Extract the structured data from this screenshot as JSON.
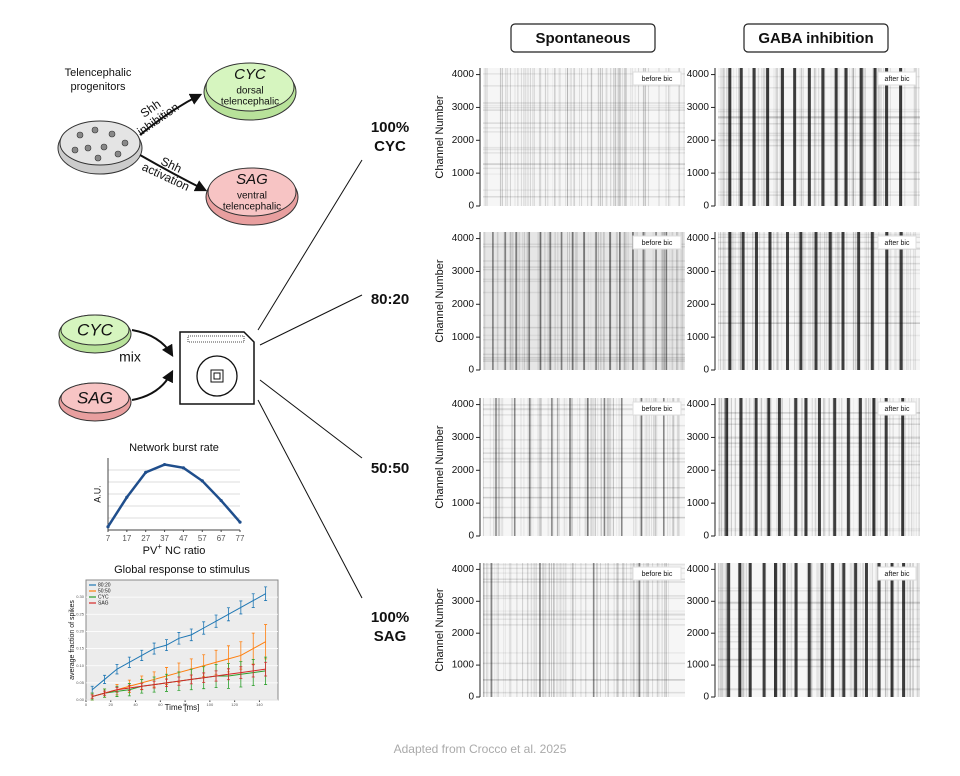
{
  "header": {
    "columns": [
      "Spontaneous",
      "GABA inhibition"
    ]
  },
  "diagram": {
    "progenitors": [
      "Telencephalic",
      "progenitors"
    ],
    "shh_inhibition": [
      "Shh",
      "inhibition"
    ],
    "shh_activation": [
      "Shh",
      "activation"
    ],
    "cyc": {
      "name": "CYC",
      "desc": [
        "dorsal",
        "telencephalic"
      ]
    },
    "sag": {
      "name": "SAG",
      "desc": [
        "ventral",
        "telencephalic"
      ]
    },
    "mix": "mix"
  },
  "conditions": [
    [
      "100%",
      "CYC"
    ],
    [
      "80:20"
    ],
    [
      "50:50"
    ],
    [
      "100%",
      "SAG"
    ]
  ],
  "raster": {
    "y_label": "Channel Number",
    "ylim": [
      0,
      4200
    ],
    "yticks": [
      0,
      1000,
      2000,
      3000,
      4000
    ],
    "before": "before bic",
    "after": "after bic"
  },
  "burst_chart": {
    "type": "line",
    "title": "Network burst rate",
    "y_label": "A.U.",
    "x_label": {
      "base": "PV",
      "sup": "+",
      "rest": " NC ratio"
    },
    "x": [
      7,
      17,
      27,
      37,
      47,
      57,
      67,
      77
    ],
    "values": [
      0.05,
      0.5,
      0.88,
      1.0,
      0.95,
      0.75,
      0.45,
      0.12
    ],
    "color": "#1f4e8c",
    "xlim": [
      7,
      77
    ],
    "ylim": [
      0,
      1.1
    ],
    "xticks": [
      7,
      17,
      27,
      37,
      47,
      57,
      67,
      77
    ]
  },
  "response_chart": {
    "type": "line",
    "title": "Global response to stimulus",
    "x_label": "Time [ms]",
    "y_label": "average fraction of spikes",
    "x": [
      5,
      15,
      25,
      35,
      45,
      55,
      65,
      75,
      85,
      95,
      105,
      115,
      125,
      135,
      145
    ],
    "series": [
      {
        "name": "80:20",
        "color": "#1f77b4",
        "values": [
          0.03,
          0.06,
          0.09,
          0.11,
          0.13,
          0.15,
          0.16,
          0.18,
          0.19,
          0.21,
          0.23,
          0.25,
          0.27,
          0.29,
          0.31
        ],
        "errors": [
          0.01,
          0.012,
          0.014,
          0.015,
          0.015,
          0.016,
          0.016,
          0.017,
          0.017,
          0.018,
          0.018,
          0.019,
          0.019,
          0.02,
          0.02
        ]
      },
      {
        "name": "50:50",
        "color": "#ff7f0e",
        "values": [
          0.01,
          0.02,
          0.03,
          0.04,
          0.05,
          0.06,
          0.07,
          0.08,
          0.09,
          0.1,
          0.11,
          0.12,
          0.13,
          0.15,
          0.17
        ],
        "errors": [
          0.01,
          0.012,
          0.015,
          0.018,
          0.02,
          0.022,
          0.025,
          0.028,
          0.03,
          0.032,
          0.035,
          0.038,
          0.04,
          0.045,
          0.05
        ]
      },
      {
        "name": "CYC",
        "color": "#2ca02c",
        "values": [
          0.01,
          0.02,
          0.025,
          0.03,
          0.04,
          0.045,
          0.05,
          0.055,
          0.06,
          0.065,
          0.07,
          0.07,
          0.075,
          0.08,
          0.085
        ],
        "errors": [
          0.01,
          0.012,
          0.015,
          0.018,
          0.02,
          0.022,
          0.025,
          0.027,
          0.03,
          0.032,
          0.034,
          0.036,
          0.037,
          0.038,
          0.04
        ]
      },
      {
        "name": "SAG",
        "color": "#d62728",
        "values": [
          0.01,
          0.02,
          0.03,
          0.035,
          0.04,
          0.045,
          0.05,
          0.055,
          0.06,
          0.065,
          0.07,
          0.075,
          0.08,
          0.085,
          0.09
        ],
        "errors": [
          0.005,
          0.006,
          0.007,
          0.008,
          0.009,
          0.01,
          0.011,
          0.012,
          0.013,
          0.014,
          0.015,
          0.016,
          0.017,
          0.018,
          0.02
        ]
      }
    ],
    "xlim": [
      0,
      155
    ],
    "ylim": [
      0,
      0.35
    ],
    "xticks": [
      0,
      20,
      40,
      60,
      80,
      100,
      120,
      140
    ],
    "yticks": [
      {
        "value": 0,
        "label": "0.00"
      },
      {
        "value": 0.05,
        "label": "0.05"
      },
      {
        "value": 0.1,
        "label": "0.10"
      },
      {
        "value": 0.15,
        "label": "0.15"
      },
      {
        "value": 0.2,
        "label": "0.20"
      },
      {
        "value": 0.25,
        "label": "0.25"
      },
      {
        "value": 0.3,
        "label": "0.30"
      }
    ]
  },
  "footer": "Adapted from Crocco et al. 2025"
}
